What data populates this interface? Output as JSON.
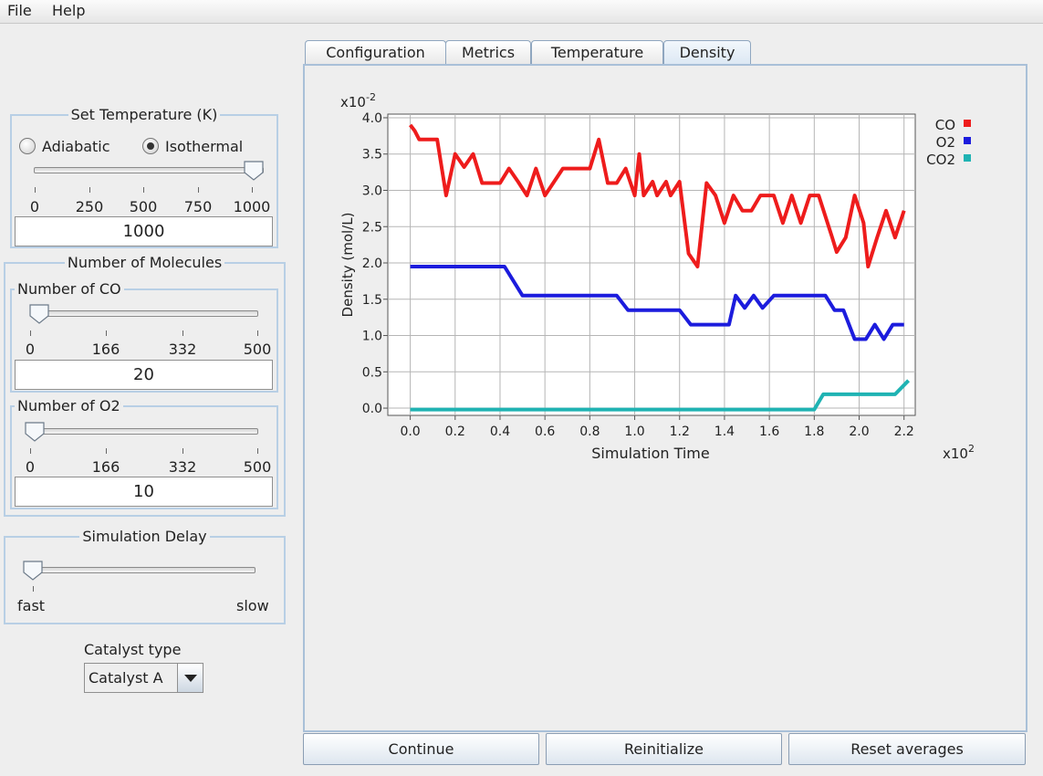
{
  "menu": {
    "file": "File",
    "help": "Help"
  },
  "temperature": {
    "legend": "Set Temperature (K)",
    "mode_adiabatic": "Adiabatic",
    "mode_isothermal": "Isothermal",
    "selected_mode": "Isothermal",
    "ticks": [
      "0",
      "250",
      "500",
      "750",
      "1000"
    ],
    "slider_fraction": 1.0,
    "value": "1000"
  },
  "molecules": {
    "legend": "Number of Molecules",
    "co": {
      "legend": "Number of CO",
      "ticks": [
        "0",
        "166",
        "332",
        "500"
      ],
      "value": "20",
      "slider_fraction": 0.04
    },
    "o2": {
      "legend": "Number of O2",
      "ticks": [
        "0",
        "166",
        "332",
        "500"
      ],
      "value": "10",
      "slider_fraction": 0.02
    }
  },
  "delay": {
    "legend": "Simulation Delay",
    "left_label": "fast",
    "right_label": "slow",
    "slider_fraction": 0.0
  },
  "catalyst": {
    "label": "Catalyst type",
    "selected": "Catalyst A"
  },
  "tabs": [
    {
      "label": "Configuration",
      "active": false
    },
    {
      "label": "Metrics",
      "active": false
    },
    {
      "label": "Temperature",
      "active": false
    },
    {
      "label": "Density",
      "active": true
    }
  ],
  "buttons": {
    "continue": "Continue",
    "reinitialize": "Reinitialize",
    "reset": "Reset averages"
  },
  "chart_data": {
    "type": "line",
    "title": "",
    "xlabel": "Simulation Time",
    "ylabel": "Density (mol/L)",
    "x_multiplier": "x10",
    "x_multiplier_exp": "2",
    "y_multiplier": "x10",
    "y_multiplier_exp": "-2",
    "xlim": [
      -0.1,
      2.25
    ],
    "ylim": [
      -0.1,
      4.05
    ],
    "x_ticks": [
      "0.0",
      "0.2",
      "0.4",
      "0.6",
      "0.8",
      "1.0",
      "1.2",
      "1.4",
      "1.6",
      "1.8",
      "2.0",
      "2.2"
    ],
    "y_ticks": [
      "0.0",
      "0.5",
      "1.0",
      "1.5",
      "2.0",
      "2.5",
      "3.0",
      "3.5",
      "4.0"
    ],
    "grid": true,
    "legend_position": "top-right",
    "series": [
      {
        "name": "CO",
        "color": "#ee1c1c",
        "points": [
          [
            0.0,
            3.9
          ],
          [
            0.02,
            3.82
          ],
          [
            0.04,
            3.7
          ],
          [
            0.12,
            3.7
          ],
          [
            0.16,
            2.93
          ],
          [
            0.2,
            3.5
          ],
          [
            0.24,
            3.32
          ],
          [
            0.28,
            3.5
          ],
          [
            0.32,
            3.1
          ],
          [
            0.4,
            3.1
          ],
          [
            0.44,
            3.3
          ],
          [
            0.48,
            3.12
          ],
          [
            0.52,
            2.93
          ],
          [
            0.56,
            3.3
          ],
          [
            0.6,
            2.93
          ],
          [
            0.68,
            3.3
          ],
          [
            0.8,
            3.3
          ],
          [
            0.84,
            3.7
          ],
          [
            0.88,
            3.1
          ],
          [
            0.92,
            3.1
          ],
          [
            0.96,
            3.3
          ],
          [
            1.0,
            2.93
          ],
          [
            1.02,
            3.5
          ],
          [
            1.04,
            2.93
          ],
          [
            1.08,
            3.12
          ],
          [
            1.1,
            2.93
          ],
          [
            1.14,
            3.12
          ],
          [
            1.16,
            2.93
          ],
          [
            1.2,
            3.12
          ],
          [
            1.24,
            2.13
          ],
          [
            1.28,
            1.95
          ],
          [
            1.32,
            3.1
          ],
          [
            1.36,
            2.93
          ],
          [
            1.4,
            2.55
          ],
          [
            1.44,
            2.93
          ],
          [
            1.48,
            2.72
          ],
          [
            1.52,
            2.72
          ],
          [
            1.56,
            2.93
          ],
          [
            1.62,
            2.93
          ],
          [
            1.66,
            2.55
          ],
          [
            1.7,
            2.93
          ],
          [
            1.74,
            2.55
          ],
          [
            1.78,
            2.93
          ],
          [
            1.82,
            2.93
          ],
          [
            1.88,
            2.35
          ],
          [
            1.9,
            2.15
          ],
          [
            1.94,
            2.35
          ],
          [
            1.98,
            2.93
          ],
          [
            2.02,
            2.55
          ],
          [
            2.04,
            1.95
          ],
          [
            2.08,
            2.35
          ],
          [
            2.12,
            2.72
          ],
          [
            2.16,
            2.35
          ],
          [
            2.2,
            2.72
          ]
        ]
      },
      {
        "name": "O2",
        "color": "#1c1cdd",
        "points": [
          [
            0.0,
            1.95
          ],
          [
            0.42,
            1.95
          ],
          [
            0.5,
            1.55
          ],
          [
            0.92,
            1.55
          ],
          [
            0.97,
            1.35
          ],
          [
            1.2,
            1.35
          ],
          [
            1.25,
            1.15
          ],
          [
            1.42,
            1.15
          ],
          [
            1.45,
            1.55
          ],
          [
            1.49,
            1.38
          ],
          [
            1.53,
            1.55
          ],
          [
            1.57,
            1.38
          ],
          [
            1.62,
            1.55
          ],
          [
            1.85,
            1.55
          ],
          [
            1.89,
            1.35
          ],
          [
            1.93,
            1.35
          ],
          [
            1.98,
            0.95
          ],
          [
            2.03,
            0.95
          ],
          [
            2.07,
            1.15
          ],
          [
            2.11,
            0.95
          ],
          [
            2.15,
            1.15
          ],
          [
            2.2,
            1.15
          ]
        ]
      },
      {
        "name": "CO2",
        "color": "#1fb3b3",
        "points": [
          [
            0.0,
            -0.02
          ],
          [
            1.8,
            -0.02
          ],
          [
            1.84,
            0.19
          ],
          [
            2.16,
            0.19
          ],
          [
            2.22,
            0.38
          ]
        ]
      }
    ]
  }
}
